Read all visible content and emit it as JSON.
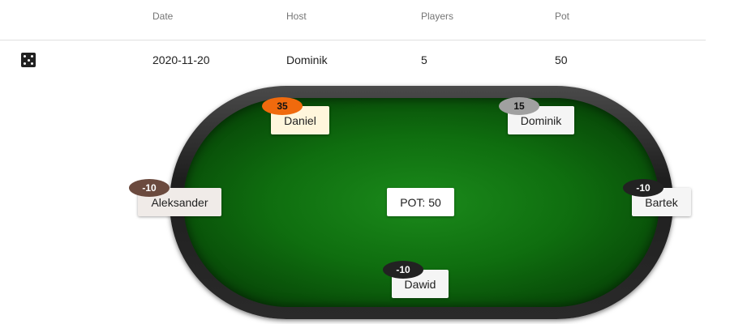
{
  "table": {
    "headers": {
      "date": "Date",
      "host": "Host",
      "players": "Players",
      "pot": "Pot"
    },
    "row": {
      "icon": "dice-icon",
      "date": "2020-11-20",
      "host": "Dominik",
      "players": "5",
      "pot": "50"
    }
  },
  "poker_table": {
    "pot_label": "POT: 50",
    "seats": [
      {
        "name": "Daniel",
        "chip": "35",
        "chip_color": "#f06a0d"
      },
      {
        "name": "Dominik",
        "chip": "15",
        "chip_color": "#a0a0a0"
      },
      {
        "name": "Aleksander",
        "chip": "-10",
        "chip_color": "#6b4a3e"
      },
      {
        "name": "Bartek",
        "chip": "-10",
        "chip_color": "#222222"
      },
      {
        "name": "Dawid",
        "chip": "-10",
        "chip_color": "#222222"
      }
    ],
    "felt_color": "#0f6e0f",
    "rail_color": "#222222"
  }
}
